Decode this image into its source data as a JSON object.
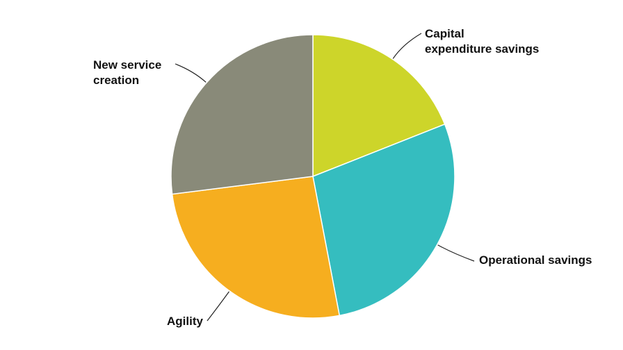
{
  "chart_data": {
    "type": "pie",
    "title": "",
    "start_angle_deg": 0,
    "direction": "clockwise",
    "slices": [
      {
        "label_lines": [
          "Capital",
          "expenditure savings"
        ],
        "value": 19,
        "color": "#cdd52a"
      },
      {
        "label_lines": [
          "Operational savings"
        ],
        "value": 28,
        "color": "#35bdbf"
      },
      {
        "label_lines": [
          "Agility"
        ],
        "value": 26,
        "color": "#f6ae1f"
      },
      {
        "label_lines": [
          "New service",
          "creation"
        ],
        "value": 27,
        "color": "#898a79"
      }
    ]
  }
}
